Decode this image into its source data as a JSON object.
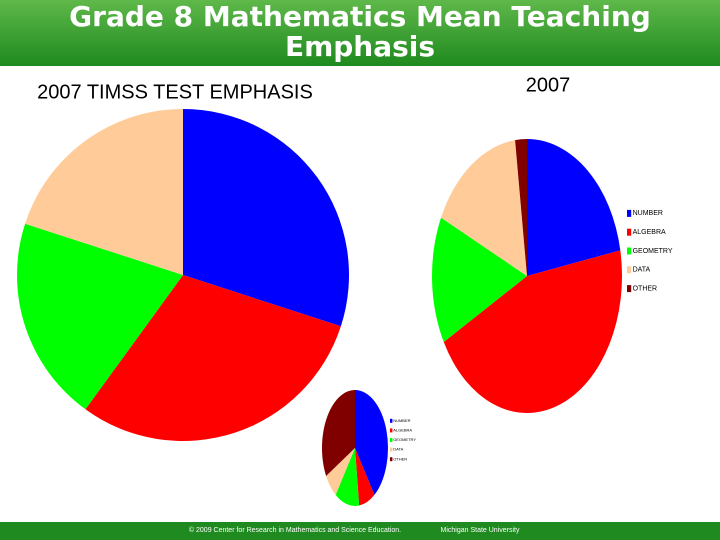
{
  "header": {
    "title": "Grade 8 Mathematics Mean Teaching Emphasis"
  },
  "chart_data": [
    {
      "type": "pie",
      "title": "2007 TIMSS TEST EMPHASIS",
      "legend": false,
      "categories": [
        "NUMBER",
        "ALGEBRA",
        "GEOMETRY",
        "DATA"
      ],
      "values": [
        30,
        30,
        20,
        20
      ],
      "colors": [
        "#0000ff",
        "#ff0000",
        "#00ff00",
        "#ffcc99"
      ]
    },
    {
      "type": "pie",
      "title": "2007",
      "legend": true,
      "categories": [
        "NUMBER",
        "ALGEBRA",
        "GEOMETRY",
        "DATA",
        "OTHER"
      ],
      "values": [
        22,
        45,
        15,
        16,
        2
      ],
      "colors": [
        "#0000ff",
        "#ff0000",
        "#00ff00",
        "#ffcc99",
        "#800000"
      ]
    },
    {
      "type": "pie",
      "legend": true,
      "categories": [
        "NUMBER",
        "ALGEBRA",
        "GEOMETRY",
        "DATA",
        "OTHER"
      ],
      "values": [
        40,
        8,
        12,
        7,
        33
      ],
      "colors": [
        "#0000ff",
        "#ff0000",
        "#00ff00",
        "#ffcc99",
        "#800000"
      ]
    }
  ],
  "footer": {
    "copyright": "© 2009 Center for Research in Mathematics and Science Education.",
    "institution": "Michigan State University"
  }
}
